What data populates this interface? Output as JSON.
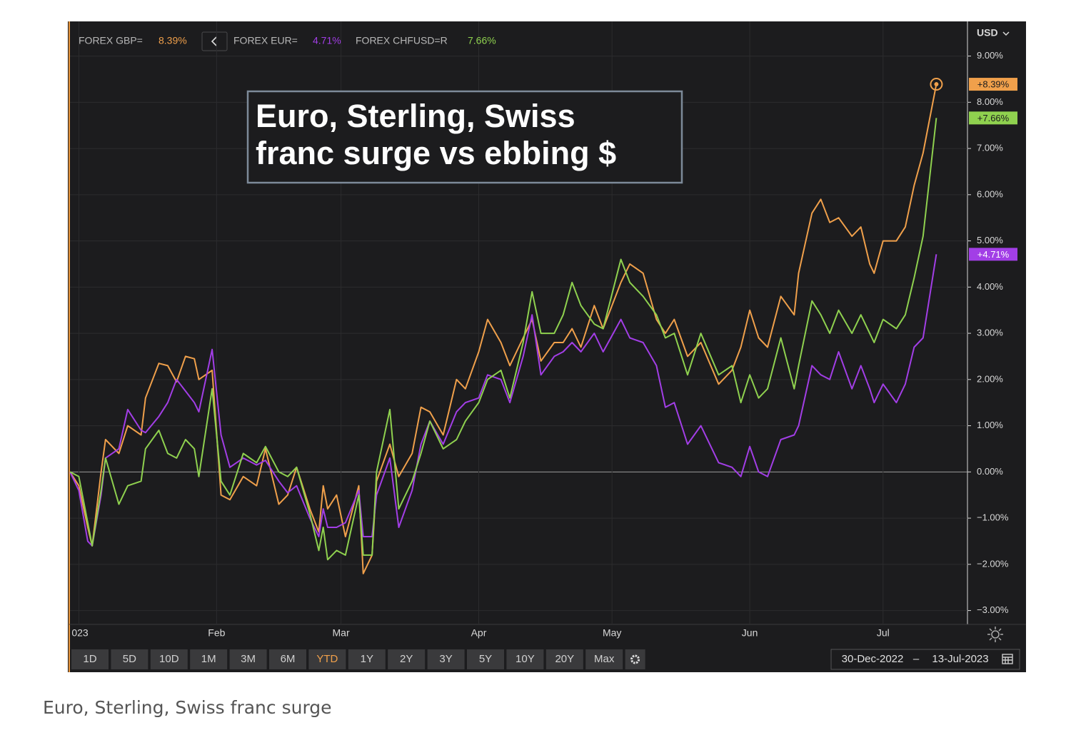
{
  "chart_data": {
    "type": "line",
    "annotation_lines": [
      "Euro, Sterling, Swiss",
      "franc surge vs ebbing $"
    ],
    "currency": "USD",
    "x": [
      "2022-12-30",
      "2023-01-01",
      "2023-01-03",
      "2023-01-04",
      "2023-01-06",
      "2023-01-07",
      "2023-01-10",
      "2023-01-12",
      "2023-01-15",
      "2023-01-16",
      "2023-01-19",
      "2023-01-21",
      "2023-01-23",
      "2023-01-25",
      "2023-01-27",
      "2023-01-28",
      "2023-01-31",
      "2023-02-02",
      "2023-02-04",
      "2023-02-07",
      "2023-02-10",
      "2023-02-12",
      "2023-02-15",
      "2023-02-17",
      "2023-02-19",
      "2023-02-22",
      "2023-02-24",
      "2023-02-25",
      "2023-02-26",
      "2023-02-28",
      "2023-03-02",
      "2023-03-05",
      "2023-03-06",
      "2023-03-08",
      "2023-03-09",
      "2023-03-12",
      "2023-03-14",
      "2023-03-17",
      "2023-03-19",
      "2023-03-21",
      "2023-03-24",
      "2023-03-27",
      "2023-03-29",
      "2023-04-01",
      "2023-04-03",
      "2023-04-06",
      "2023-04-08",
      "2023-04-11",
      "2023-04-13",
      "2023-04-15",
      "2023-04-18",
      "2023-04-20",
      "2023-04-22",
      "2023-04-24",
      "2023-04-27",
      "2023-04-29",
      "2023-05-03",
      "2023-05-05",
      "2023-05-08",
      "2023-05-11",
      "2023-05-13",
      "2023-05-15",
      "2023-05-18",
      "2023-05-21",
      "2023-05-25",
      "2023-05-28",
      "2023-05-30",
      "2023-06-01",
      "2023-06-03",
      "2023-06-05",
      "2023-06-08",
      "2023-06-11",
      "2023-06-12",
      "2023-06-15",
      "2023-06-17",
      "2023-06-19",
      "2023-06-21",
      "2023-06-24",
      "2023-06-26",
      "2023-06-28",
      "2023-06-29",
      "2023-07-01",
      "2023-07-04",
      "2023-07-06",
      "2023-07-08",
      "2023-07-10",
      "2023-07-13"
    ],
    "series": [
      {
        "name": "FOREX GBP=",
        "legend_value": "8.39%",
        "badge": "+8.39%",
        "color": "#f0a04b",
        "end_marker": true,
        "values": [
          0,
          -0.3,
          -1.2,
          -1.6,
          0,
          0.7,
          0.4,
          1.0,
          0.8,
          1.6,
          2.35,
          2.3,
          1.95,
          2.5,
          2.45,
          2.0,
          2.2,
          -0.5,
          -0.6,
          -0.1,
          -0.3,
          0.5,
          -0.7,
          -0.5,
          0.1,
          -0.8,
          -1.3,
          -0.3,
          -0.8,
          -0.5,
          -1.4,
          -0.3,
          -2.2,
          -1.8,
          -0.2,
          0.6,
          -0.1,
          0.4,
          1.4,
          1.3,
          0.8,
          2.0,
          1.8,
          2.6,
          3.3,
          2.8,
          2.3,
          2.9,
          3.3,
          2.4,
          2.8,
          2.8,
          3.1,
          2.7,
          3.6,
          3.1,
          4.1,
          4.5,
          4.3,
          3.3,
          3.0,
          3.3,
          2.5,
          2.8,
          1.9,
          2.2,
          2.7,
          3.5,
          2.9,
          2.7,
          3.8,
          3.4,
          4.3,
          5.6,
          5.9,
          5.4,
          5.5,
          5.1,
          5.3,
          4.5,
          4.3,
          5.0,
          5.0,
          5.3,
          6.2,
          6.9,
          8.39
        ]
      },
      {
        "name": "FOREX EUR=",
        "legend_value": "4.71%",
        "badge": "+4.71%",
        "color": "#a23ee6",
        "end_marker": false,
        "values": [
          0,
          -0.4,
          -1.5,
          -1.6,
          -0.5,
          0.3,
          0.5,
          1.35,
          0.9,
          0.85,
          1.2,
          1.5,
          2.0,
          1.75,
          1.5,
          1.3,
          2.65,
          0.8,
          0.1,
          0.3,
          0.15,
          0.25,
          -0.2,
          -0.45,
          -0.3,
          -1.0,
          -1.4,
          -0.8,
          -1.2,
          -1.2,
          -1.1,
          -0.4,
          -1.4,
          -1.4,
          -0.5,
          0.3,
          -1.2,
          -0.4,
          0.6,
          1.1,
          0.6,
          1.3,
          1.5,
          1.6,
          2.1,
          2.0,
          1.5,
          2.5,
          3.4,
          2.1,
          2.5,
          2.6,
          2.8,
          2.6,
          3.0,
          2.6,
          3.3,
          2.9,
          2.8,
          2.3,
          1.4,
          1.5,
          0.6,
          1.0,
          0.2,
          0.1,
          -0.1,
          0.55,
          0.0,
          -0.1,
          0.7,
          0.8,
          1.0,
          2.3,
          2.1,
          2.0,
          2.6,
          1.8,
          2.3,
          1.8,
          1.5,
          1.9,
          1.5,
          1.9,
          2.7,
          2.9,
          4.71
        ]
      },
      {
        "name": "FOREX CHFUSD=R",
        "legend_value": "7.66%",
        "badge": "+7.66%",
        "color": "#8fd14f",
        "end_marker": false,
        "values": [
          0,
          -0.1,
          -1.1,
          -1.6,
          -0.4,
          0.3,
          -0.7,
          -0.3,
          -0.2,
          0.5,
          0.9,
          0.4,
          0.3,
          0.7,
          0.5,
          -0.1,
          1.8,
          -0.2,
          -0.5,
          0.4,
          0.2,
          0.55,
          0.0,
          -0.1,
          0.1,
          -0.9,
          -1.7,
          -1.2,
          -1.9,
          -1.7,
          -1.8,
          -0.5,
          -1.8,
          -1.8,
          0.0,
          1.35,
          -0.8,
          -0.2,
          0.4,
          1.1,
          0.5,
          0.7,
          1.1,
          1.5,
          2.0,
          2.2,
          1.6,
          2.8,
          3.9,
          3.0,
          3.0,
          3.4,
          4.1,
          3.6,
          3.2,
          3.1,
          4.6,
          4.1,
          3.8,
          3.4,
          2.9,
          3.0,
          2.1,
          3.0,
          2.1,
          2.3,
          1.5,
          2.1,
          1.6,
          1.8,
          2.9,
          1.8,
          2.3,
          3.7,
          3.4,
          3.0,
          3.5,
          3.0,
          3.4,
          3.0,
          2.8,
          3.3,
          3.1,
          3.4,
          4.2,
          5.1,
          7.66
        ]
      }
    ],
    "xlim": [
      "2022-12-30",
      "2023-07-20"
    ],
    "xticks": [
      {
        "value": "2023-01-01",
        "label": "023"
      },
      {
        "value": "2023-02-01",
        "label": "Feb"
      },
      {
        "value": "2023-03-01",
        "label": "Mar"
      },
      {
        "value": "2023-04-01",
        "label": "Apr"
      },
      {
        "value": "2023-05-01",
        "label": "May"
      },
      {
        "value": "2023-06-01",
        "label": "Jun"
      },
      {
        "value": "2023-07-01",
        "label": "Jul"
      }
    ],
    "ylim": [
      -3.3,
      9.75
    ],
    "yticks": [
      {
        "value": -3,
        "label": "−3.00%"
      },
      {
        "value": -2,
        "label": "−2.00%"
      },
      {
        "value": -1,
        "label": "−1.00%"
      },
      {
        "value": 0,
        "label": "0.00%"
      },
      {
        "value": 1,
        "label": "1.00%"
      },
      {
        "value": 2,
        "label": "2.00%"
      },
      {
        "value": 3,
        "label": "3.00%"
      },
      {
        "value": 4,
        "label": "4.00%"
      },
      {
        "value": 5,
        "label": "5.00%"
      },
      {
        "value": 6,
        "label": "6.00%"
      },
      {
        "value": 7,
        "label": "7.00%"
      },
      {
        "value": 8,
        "label": "8.00%"
      },
      {
        "value": 9,
        "label": "9.00%"
      }
    ],
    "grid": true
  },
  "toolbar": {
    "ranges": [
      "1D",
      "5D",
      "10D",
      "1M",
      "3M",
      "6M",
      "YTD",
      "1Y",
      "2Y",
      "3Y",
      "5Y",
      "10Y",
      "20Y",
      "Max"
    ],
    "active": "YTD",
    "from": "30-Dec-2022",
    "separator": "–",
    "to": "13-Jul-2023"
  },
  "caption": "Euro, Sterling, Swiss franc surge"
}
